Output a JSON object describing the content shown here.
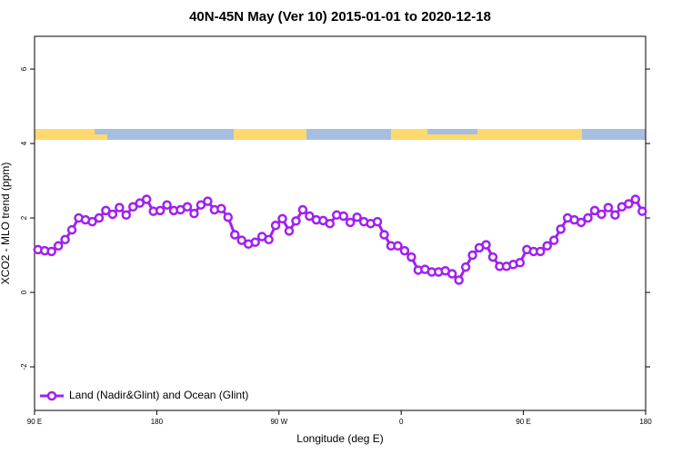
{
  "chart_data": {
    "type": "line",
    "title": "40N-45N May (Ver 10)   2015-01-01 to 2020-12-18",
    "x_label": "Longitude (deg E)",
    "y_label": "XCO2 - MLO trend (ppm)",
    "xlim": [
      90,
      540
    ],
    "xticks": [
      {
        "value": 90,
        "label": "90 E"
      },
      180,
      {
        "value": 270,
        "label": "90 W"
      },
      {
        "value": 360,
        "label": "0"
      },
      {
        "value": 450,
        "label": "90 E"
      },
      {
        "value": 540,
        "label": "180"
      }
    ],
    "ylim": [
      -3.17,
      6.88
    ],
    "yticks": [
      -2,
      0,
      2,
      4,
      6
    ],
    "legend": "bottomleft",
    "x": [
      92.5,
      97.5,
      102.5,
      107.5,
      112.5,
      117.5,
      122.5,
      127.5,
      132.5,
      137.5,
      142.5,
      147.5,
      152.5,
      157.5,
      162.5,
      167.5,
      172.5,
      177.5,
      182.5,
      187.5,
      192.5,
      197.5,
      202.5,
      207.5,
      212.5,
      217.5,
      222.5,
      227.5,
      232.5,
      237.5,
      242.5,
      247.5,
      252.5,
      257.5,
      262.5,
      267.5,
      272.5,
      277.5,
      282.5,
      287.5,
      292.5,
      297.5,
      302.5,
      307.5,
      312.5,
      317.5,
      322.5,
      327.5,
      332.5,
      337.5,
      342.5,
      347.5,
      352.5,
      357.5,
      362.5,
      367.5,
      372.5,
      377.5,
      382.5,
      387.5,
      392.5,
      397.5,
      402.5,
      407.5,
      412.5,
      417.5,
      422.5,
      427.5,
      432.5,
      437.5,
      442.5,
      447.5,
      452.5,
      457.5,
      462.5,
      467.5,
      472.5,
      477.5,
      482.5,
      487.5,
      492.5,
      497.5,
      502.5,
      507.5,
      512.5,
      517.5,
      522.5,
      527.5,
      532.5,
      537.5
    ],
    "series": [
      {
        "name": "Land (Nadir&Glint) and Ocean (Glint)",
        "color": "#a020f0",
        "values": [
          1.15,
          1.12,
          1.1,
          1.25,
          1.42,
          1.68,
          2.0,
          1.95,
          1.9,
          2.0,
          2.2,
          2.1,
          2.28,
          2.08,
          2.3,
          2.4,
          2.5,
          2.18,
          2.2,
          2.35,
          2.2,
          2.22,
          2.3,
          2.12,
          2.35,
          2.45,
          2.22,
          2.25,
          2.02,
          1.55,
          1.4,
          1.3,
          1.35,
          1.5,
          1.42,
          1.8,
          1.98,
          1.65,
          1.92,
          2.22,
          2.05,
          1.95,
          1.93,
          1.85,
          2.08,
          2.05,
          1.88,
          2.02,
          1.9,
          1.85,
          1.9,
          1.55,
          1.25,
          1.25,
          1.12,
          0.95,
          0.6,
          0.62,
          0.55,
          0.55,
          0.58,
          0.5,
          0.33,
          0.68,
          1.0,
          1.2,
          1.28,
          0.95,
          0.7,
          0.7,
          0.75,
          0.8,
          1.15,
          1.1,
          1.1,
          1.25,
          1.4,
          1.7,
          2.0,
          1.95,
          1.88,
          2.0,
          2.2,
          2.1,
          2.28,
          2.08,
          2.3,
          2.38,
          2.5,
          2.18
        ]
      }
    ]
  }
}
